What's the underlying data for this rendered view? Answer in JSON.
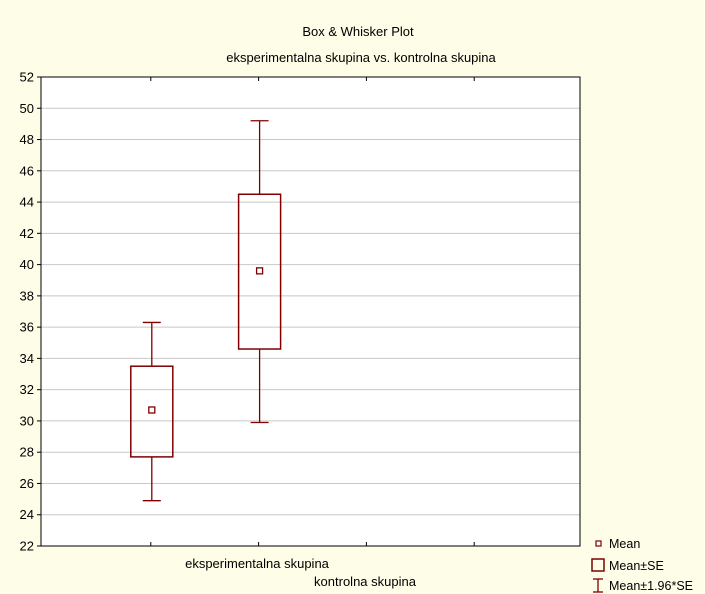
{
  "chart_data": {
    "type": "box",
    "title": "Box & Whisker Plot",
    "subtitle": "eksperimentalna skupina vs. kontrolna skupina",
    "xlabel": "",
    "ylabel": "",
    "ylim": [
      22,
      52
    ],
    "yticks": [
      22,
      24,
      26,
      28,
      30,
      32,
      34,
      36,
      38,
      40,
      42,
      44,
      46,
      48,
      50,
      52
    ],
    "grid": true,
    "legend_position": "bottom-right",
    "categories": [
      "eksperimentalna skupina",
      "kontrolna skupina"
    ],
    "series": [
      {
        "category": "eksperimentalna skupina",
        "mean": 30.7,
        "mean_minus_se": 27.7,
        "mean_plus_se": 33.5,
        "mean_minus_1_96se": 24.9,
        "mean_plus_1_96se": 36.3
      },
      {
        "category": "kontrolna skupina",
        "mean": 39.6,
        "mean_minus_se": 34.6,
        "mean_plus_se": 44.5,
        "mean_minus_1_96se": 29.9,
        "mean_plus_1_96se": 49.2
      }
    ],
    "legend": [
      {
        "key": "mean",
        "label": "Mean"
      },
      {
        "key": "se",
        "label": "Mean±SE"
      },
      {
        "key": "ci",
        "label": "Mean±1.96*SE"
      }
    ],
    "colors": {
      "box": "#800000",
      "grid": "#c8c8c8",
      "background": "#fdfde8",
      "plot_area": "#ffffff"
    }
  }
}
